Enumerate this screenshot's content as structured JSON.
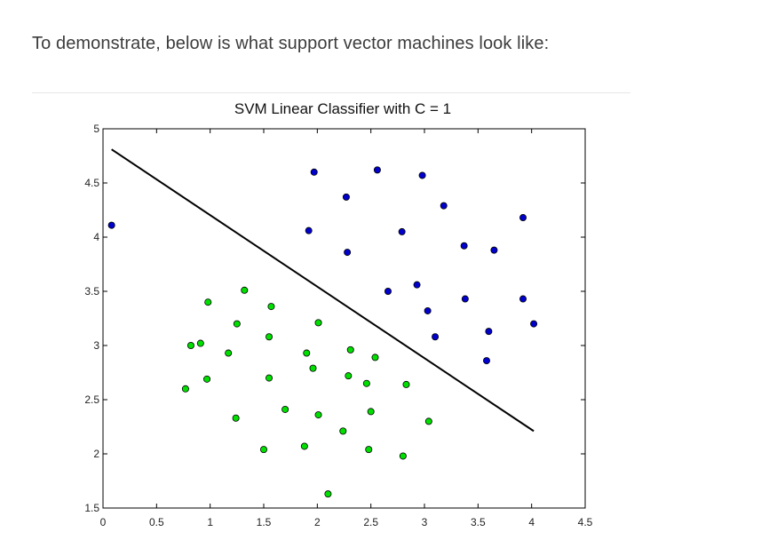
{
  "intro_text": "To demonstrate, below is what support vector machines look like:",
  "chart_data": {
    "type": "scatter",
    "title": "SVM Linear Classifier with C = 1",
    "xlabel": "",
    "ylabel": "",
    "xlim": [
      0,
      4.5
    ],
    "ylim": [
      1.5,
      5
    ],
    "x_ticks": [
      0,
      0.5,
      1,
      1.5,
      2,
      2.5,
      3,
      3.5,
      4,
      4.5
    ],
    "y_ticks": [
      1.5,
      2,
      2.5,
      3,
      3.5,
      4,
      4.5,
      5
    ],
    "x_tick_labels": [
      "0",
      "0.5",
      "1",
      "1.5",
      "2",
      "2.5",
      "3",
      "3.5",
      "4",
      "4.5"
    ],
    "y_tick_labels": [
      "1.5",
      "2",
      "2.5",
      "3",
      "3.5",
      "4",
      "4.5",
      "5"
    ],
    "grid": false,
    "series": [
      {
        "color": "#0000cc",
        "points": [
          [
            0.08,
            4.11
          ],
          [
            1.97,
            4.6
          ],
          [
            2.27,
            4.37
          ],
          [
            2.56,
            4.62
          ],
          [
            2.98,
            4.57
          ],
          [
            3.18,
            4.29
          ],
          [
            3.92,
            4.18
          ],
          [
            1.92,
            4.06
          ],
          [
            2.28,
            3.86
          ],
          [
            2.79,
            4.05
          ],
          [
            3.37,
            3.92
          ],
          [
            3.65,
            3.88
          ],
          [
            2.66,
            3.5
          ],
          [
            2.93,
            3.56
          ],
          [
            3.38,
            3.43
          ],
          [
            3.92,
            3.43
          ],
          [
            3.03,
            3.32
          ],
          [
            3.6,
            3.13
          ],
          [
            4.02,
            3.2
          ],
          [
            3.1,
            3.08
          ],
          [
            3.58,
            2.86
          ]
        ]
      },
      {
        "color": "#00e000",
        "points": [
          [
            1.32,
            3.51
          ],
          [
            0.98,
            3.4
          ],
          [
            1.57,
            3.36
          ],
          [
            1.25,
            3.2
          ],
          [
            2.01,
            3.21
          ],
          [
            0.82,
            3.0
          ],
          [
            0.91,
            3.02
          ],
          [
            1.55,
            3.08
          ],
          [
            1.17,
            2.93
          ],
          [
            1.9,
            2.93
          ],
          [
            2.31,
            2.96
          ],
          [
            2.54,
            2.89
          ],
          [
            1.96,
            2.79
          ],
          [
            0.97,
            2.69
          ],
          [
            1.55,
            2.7
          ],
          [
            2.29,
            2.72
          ],
          [
            2.46,
            2.65
          ],
          [
            2.83,
            2.64
          ],
          [
            0.77,
            2.6
          ],
          [
            1.7,
            2.41
          ],
          [
            2.5,
            2.39
          ],
          [
            2.01,
            2.36
          ],
          [
            1.24,
            2.33
          ],
          [
            3.04,
            2.3
          ],
          [
            2.24,
            2.21
          ],
          [
            1.5,
            2.04
          ],
          [
            1.88,
            2.07
          ],
          [
            2.48,
            2.04
          ],
          [
            2.8,
            1.98
          ],
          [
            2.1,
            1.63
          ]
        ]
      }
    ],
    "decision_line": [
      [
        0.08,
        4.81
      ],
      [
        4.02,
        2.21
      ]
    ],
    "line_color": "#000000",
    "marker_edge_color": "#000000"
  }
}
